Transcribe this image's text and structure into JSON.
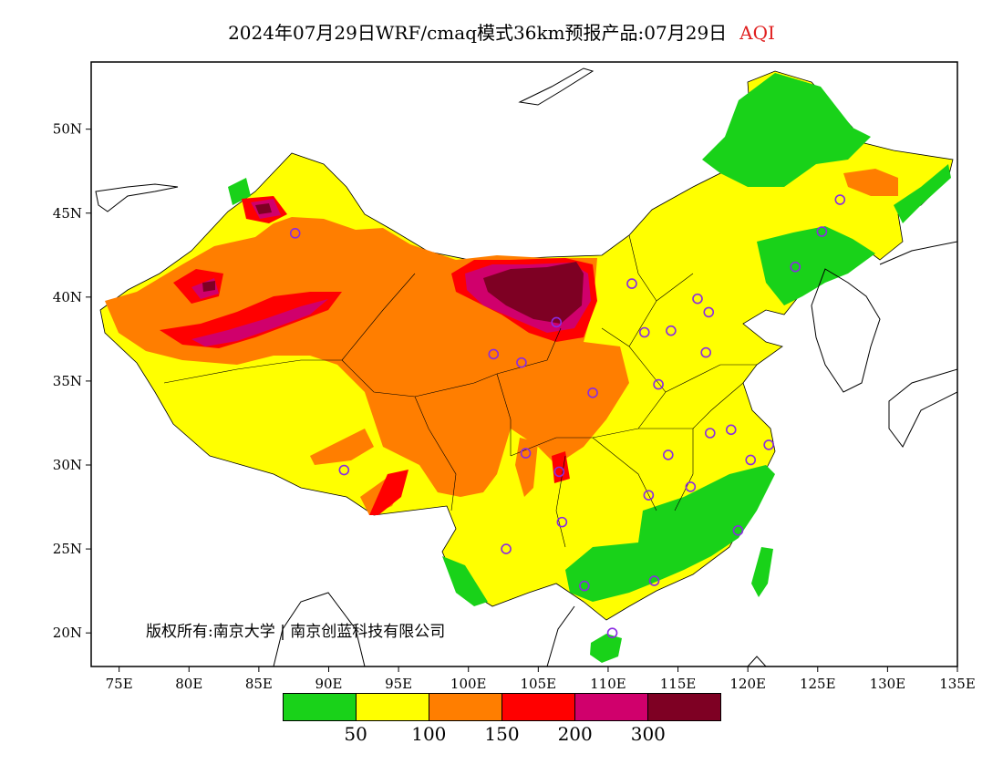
{
  "title": {
    "main": "2024年07月29日WRF/cmaq模式36km预报产品:07月29日",
    "variable": "AQI"
  },
  "axes": {
    "lon_labels": [
      "75E",
      "80E",
      "85E",
      "90E",
      "95E",
      "100E",
      "105E",
      "110E",
      "115E",
      "120E",
      "125E",
      "130E",
      "135E"
    ],
    "lat_labels": [
      "20N",
      "25N",
      "30N",
      "35N",
      "40N",
      "45N",
      "50N"
    ],
    "lon_range": [
      73,
      135
    ],
    "lat_range": [
      18,
      54
    ]
  },
  "legend": {
    "colors": [
      "#19d219",
      "#ffff00",
      "#ff7e00",
      "#ff0000",
      "#d0006c",
      "#7e0023"
    ],
    "labels": [
      "50",
      "100",
      "150",
      "200",
      "300"
    ]
  },
  "colors": {
    "good": "#19d219",
    "moderate": "#ffff00",
    "sensitive": "#ff7e00",
    "unhealthy": "#ff0000",
    "very_unhealthy": "#d0006c",
    "hazardous": "#7e0023",
    "station_ring": "#8a2be2"
  },
  "copyright": "版权所有:南京大学 | 南京创蓝科技有限公司",
  "stations_lonlat": [
    [
      87.6,
      43.8
    ],
    [
      91.1,
      29.7
    ],
    [
      101.8,
      36.6
    ],
    [
      103.8,
      36.1
    ],
    [
      104.1,
      30.7
    ],
    [
      106.5,
      29.6
    ],
    [
      106.7,
      26.6
    ],
    [
      102.7,
      25.0
    ],
    [
      108.3,
      22.8
    ],
    [
      110.3,
      20.0
    ],
    [
      106.3,
      38.5
    ],
    [
      108.9,
      34.3
    ],
    [
      111.7,
      40.8
    ],
    [
      112.6,
      37.9
    ],
    [
      114.5,
      38.0
    ],
    [
      116.4,
      39.9
    ],
    [
      117.2,
      39.1
    ],
    [
      117.0,
      36.7
    ],
    [
      113.6,
      34.8
    ],
    [
      114.3,
      30.6
    ],
    [
      112.9,
      28.2
    ],
    [
      115.9,
      28.7
    ],
    [
      117.3,
      31.9
    ],
    [
      118.8,
      32.1
    ],
    [
      120.2,
      30.3
    ],
    [
      121.5,
      31.2
    ],
    [
      119.3,
      26.1
    ],
    [
      113.3,
      23.1
    ],
    [
      123.4,
      41.8
    ],
    [
      125.3,
      43.9
    ],
    [
      126.6,
      45.8
    ]
  ]
}
